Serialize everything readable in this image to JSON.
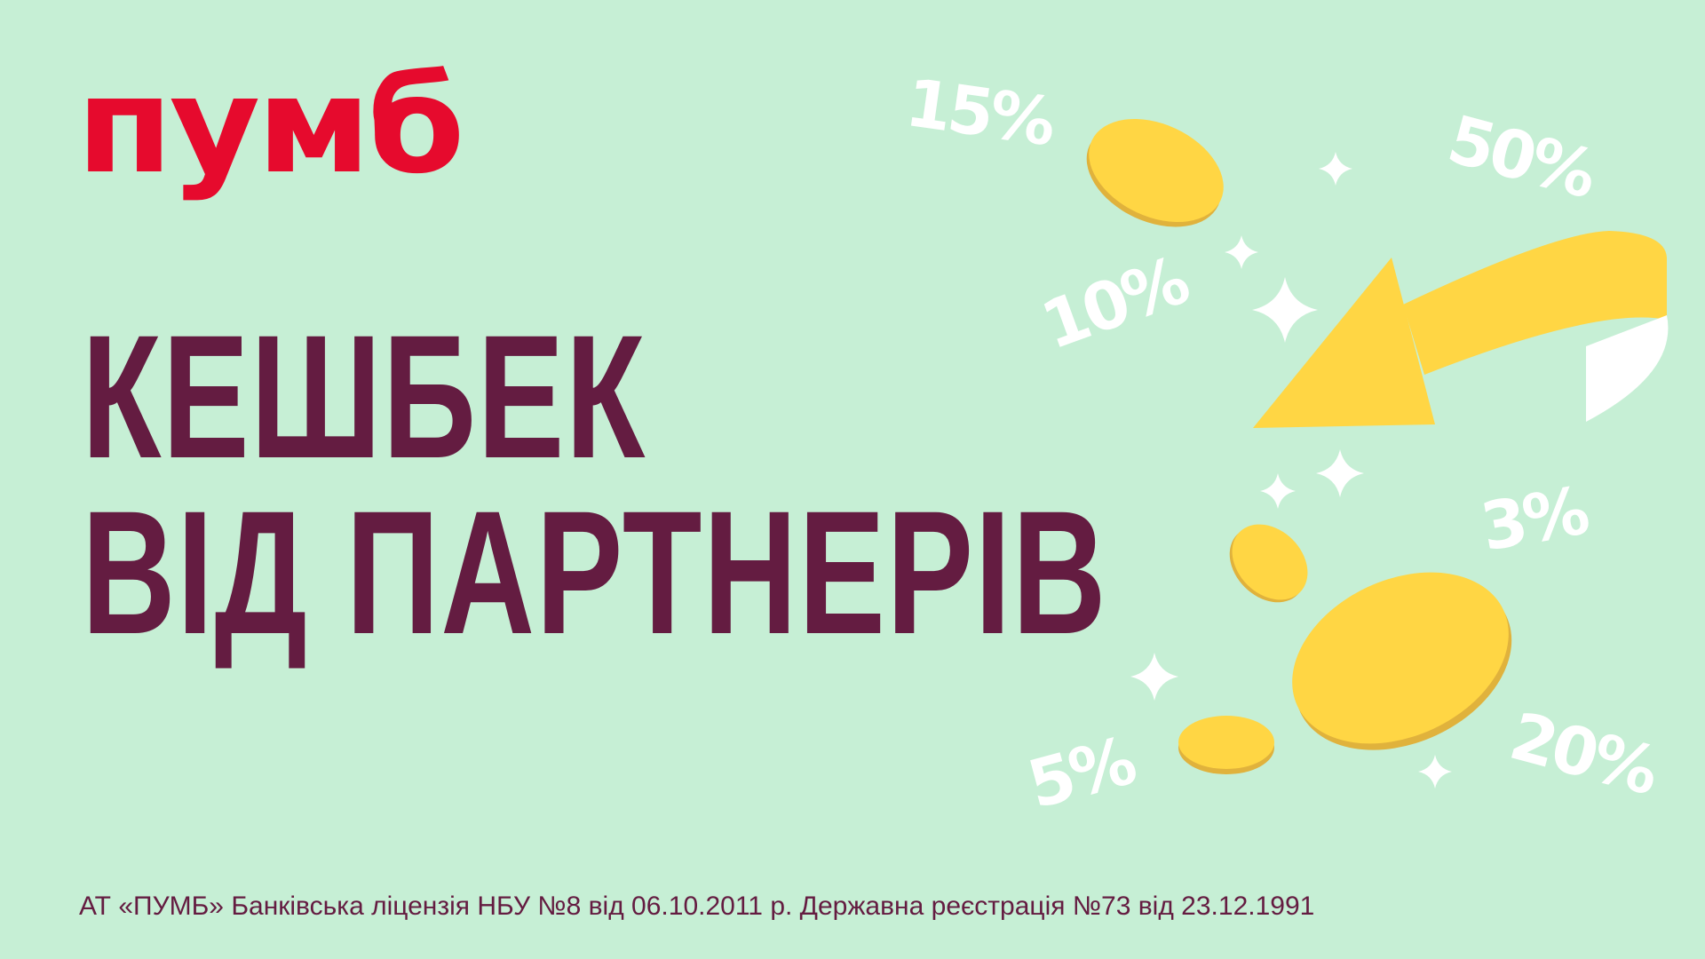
{
  "brand": {
    "logo_text": "пумб",
    "color": "#E60A2D"
  },
  "headline": {
    "line1": "КЕШБЕК",
    "line2": "ВІД ПАРТНЕРІВ",
    "color": "#641C41"
  },
  "percentages": [
    "15%",
    "50%",
    "10%",
    "3%",
    "5%",
    "20%"
  ],
  "footer": {
    "text": "АТ «ПУМБ» Банківська ліцензія НБУ №8 від 06.10.2011 р. Державна реєстрація №73 від 23.12.1991"
  },
  "colors": {
    "background": "#C6EFD5",
    "coin": "#FFD644",
    "coin_rim": "#E0B23C",
    "arrow": "#FFD644"
  },
  "icons": [
    "coin-icon",
    "arrow-icon",
    "sparkle-icon"
  ]
}
